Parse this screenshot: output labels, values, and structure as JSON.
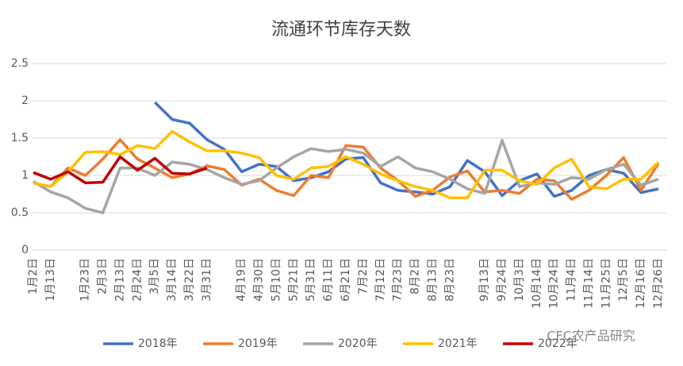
{
  "chart_data": {
    "type": "line",
    "title": "流通环节库存天数",
    "categories": [
      "1月2日",
      "1月13日",
      null,
      "1月23日",
      "2月3日",
      "2月13日",
      "2月24日",
      "3月5日",
      "3月14日",
      "3月22日",
      "3月31日",
      null,
      "4月19日",
      "4月30日",
      "5月10日",
      "5月21日",
      "5月31日",
      "6月11日",
      "6月21日",
      "7月2日",
      "7月12日",
      "7月23日",
      "8月2日",
      "8月13日",
      "8月23日",
      null,
      "9月13日",
      "9月24日",
      "10月3日",
      "10月14日",
      "10月24日",
      "11月4日",
      "11月14日",
      "11月25日",
      "12月5日",
      "12月16日",
      "12月26日"
    ],
    "series": [
      {
        "name": "2018年",
        "color": "#4472c4",
        "values": [
          null,
          null,
          null,
          null,
          null,
          null,
          null,
          1.98,
          1.75,
          1.7,
          1.48,
          1.35,
          1.05,
          1.15,
          1.12,
          0.93,
          0.97,
          1.05,
          1.22,
          1.24,
          0.9,
          0.8,
          0.78,
          0.75,
          0.85,
          1.2,
          1.05,
          0.73,
          0.93,
          1.02,
          0.72,
          0.8,
          1.0,
          1.08,
          1.03,
          0.77,
          0.82
        ]
      },
      {
        "name": "2019年",
        "color": "#ed7d31",
        "values": [
          0.9,
          0.85,
          1.1,
          1.0,
          1.22,
          1.48,
          1.22,
          1.1,
          0.97,
          1.02,
          1.13,
          1.08,
          0.87,
          0.95,
          0.8,
          0.73,
          1.0,
          0.97,
          1.4,
          1.38,
          1.1,
          0.93,
          0.72,
          0.8,
          0.98,
          1.06,
          0.78,
          0.8,
          0.76,
          0.95,
          0.93,
          0.68,
          0.8,
          1.0,
          1.24,
          0.8,
          1.16
        ]
      },
      {
        "name": "2020年",
        "color": "#a5a5a5",
        "values": [
          0.92,
          0.78,
          0.7,
          0.56,
          0.5,
          1.1,
          1.1,
          1.0,
          1.18,
          1.15,
          1.08,
          0.97,
          0.88,
          0.93,
          1.1,
          1.25,
          1.36,
          1.32,
          1.35,
          1.3,
          1.12,
          1.25,
          1.1,
          1.05,
          0.95,
          0.82,
          0.76,
          1.47,
          0.85,
          0.9,
          0.88,
          0.97,
          0.95,
          1.08,
          1.15,
          0.87,
          0.95
        ]
      },
      {
        "name": "2021年",
        "color": "#ffc000",
        "values": [
          0.9,
          0.85,
          1.05,
          1.31,
          1.32,
          1.28,
          1.4,
          1.36,
          1.59,
          1.45,
          1.33,
          1.33,
          1.3,
          1.24,
          1.0,
          0.95,
          1.1,
          1.12,
          1.25,
          1.15,
          1.02,
          0.93,
          0.85,
          0.8,
          0.7,
          0.7,
          1.07,
          1.07,
          0.93,
          0.88,
          1.1,
          1.22,
          0.85,
          0.82,
          0.95,
          0.95,
          1.18
        ]
      },
      {
        "name": "2022年",
        "color": "#c00000",
        "values": [
          1.04,
          0.95,
          1.05,
          0.9,
          0.91,
          1.25,
          1.07,
          1.23,
          1.03,
          1.02,
          1.1,
          null,
          null,
          null,
          null,
          null,
          null,
          null,
          null,
          null,
          null,
          null,
          null,
          null,
          null,
          null,
          null,
          null,
          null,
          null,
          null,
          null,
          null,
          null,
          null,
          null,
          null
        ]
      }
    ],
    "ylim": [
      0,
      2.5
    ],
    "yticks": [
      0,
      0.5,
      1,
      1.5,
      2,
      2.5
    ],
    "grid": true,
    "legend": "bottom",
    "watermark": "CFC农产品研究"
  }
}
